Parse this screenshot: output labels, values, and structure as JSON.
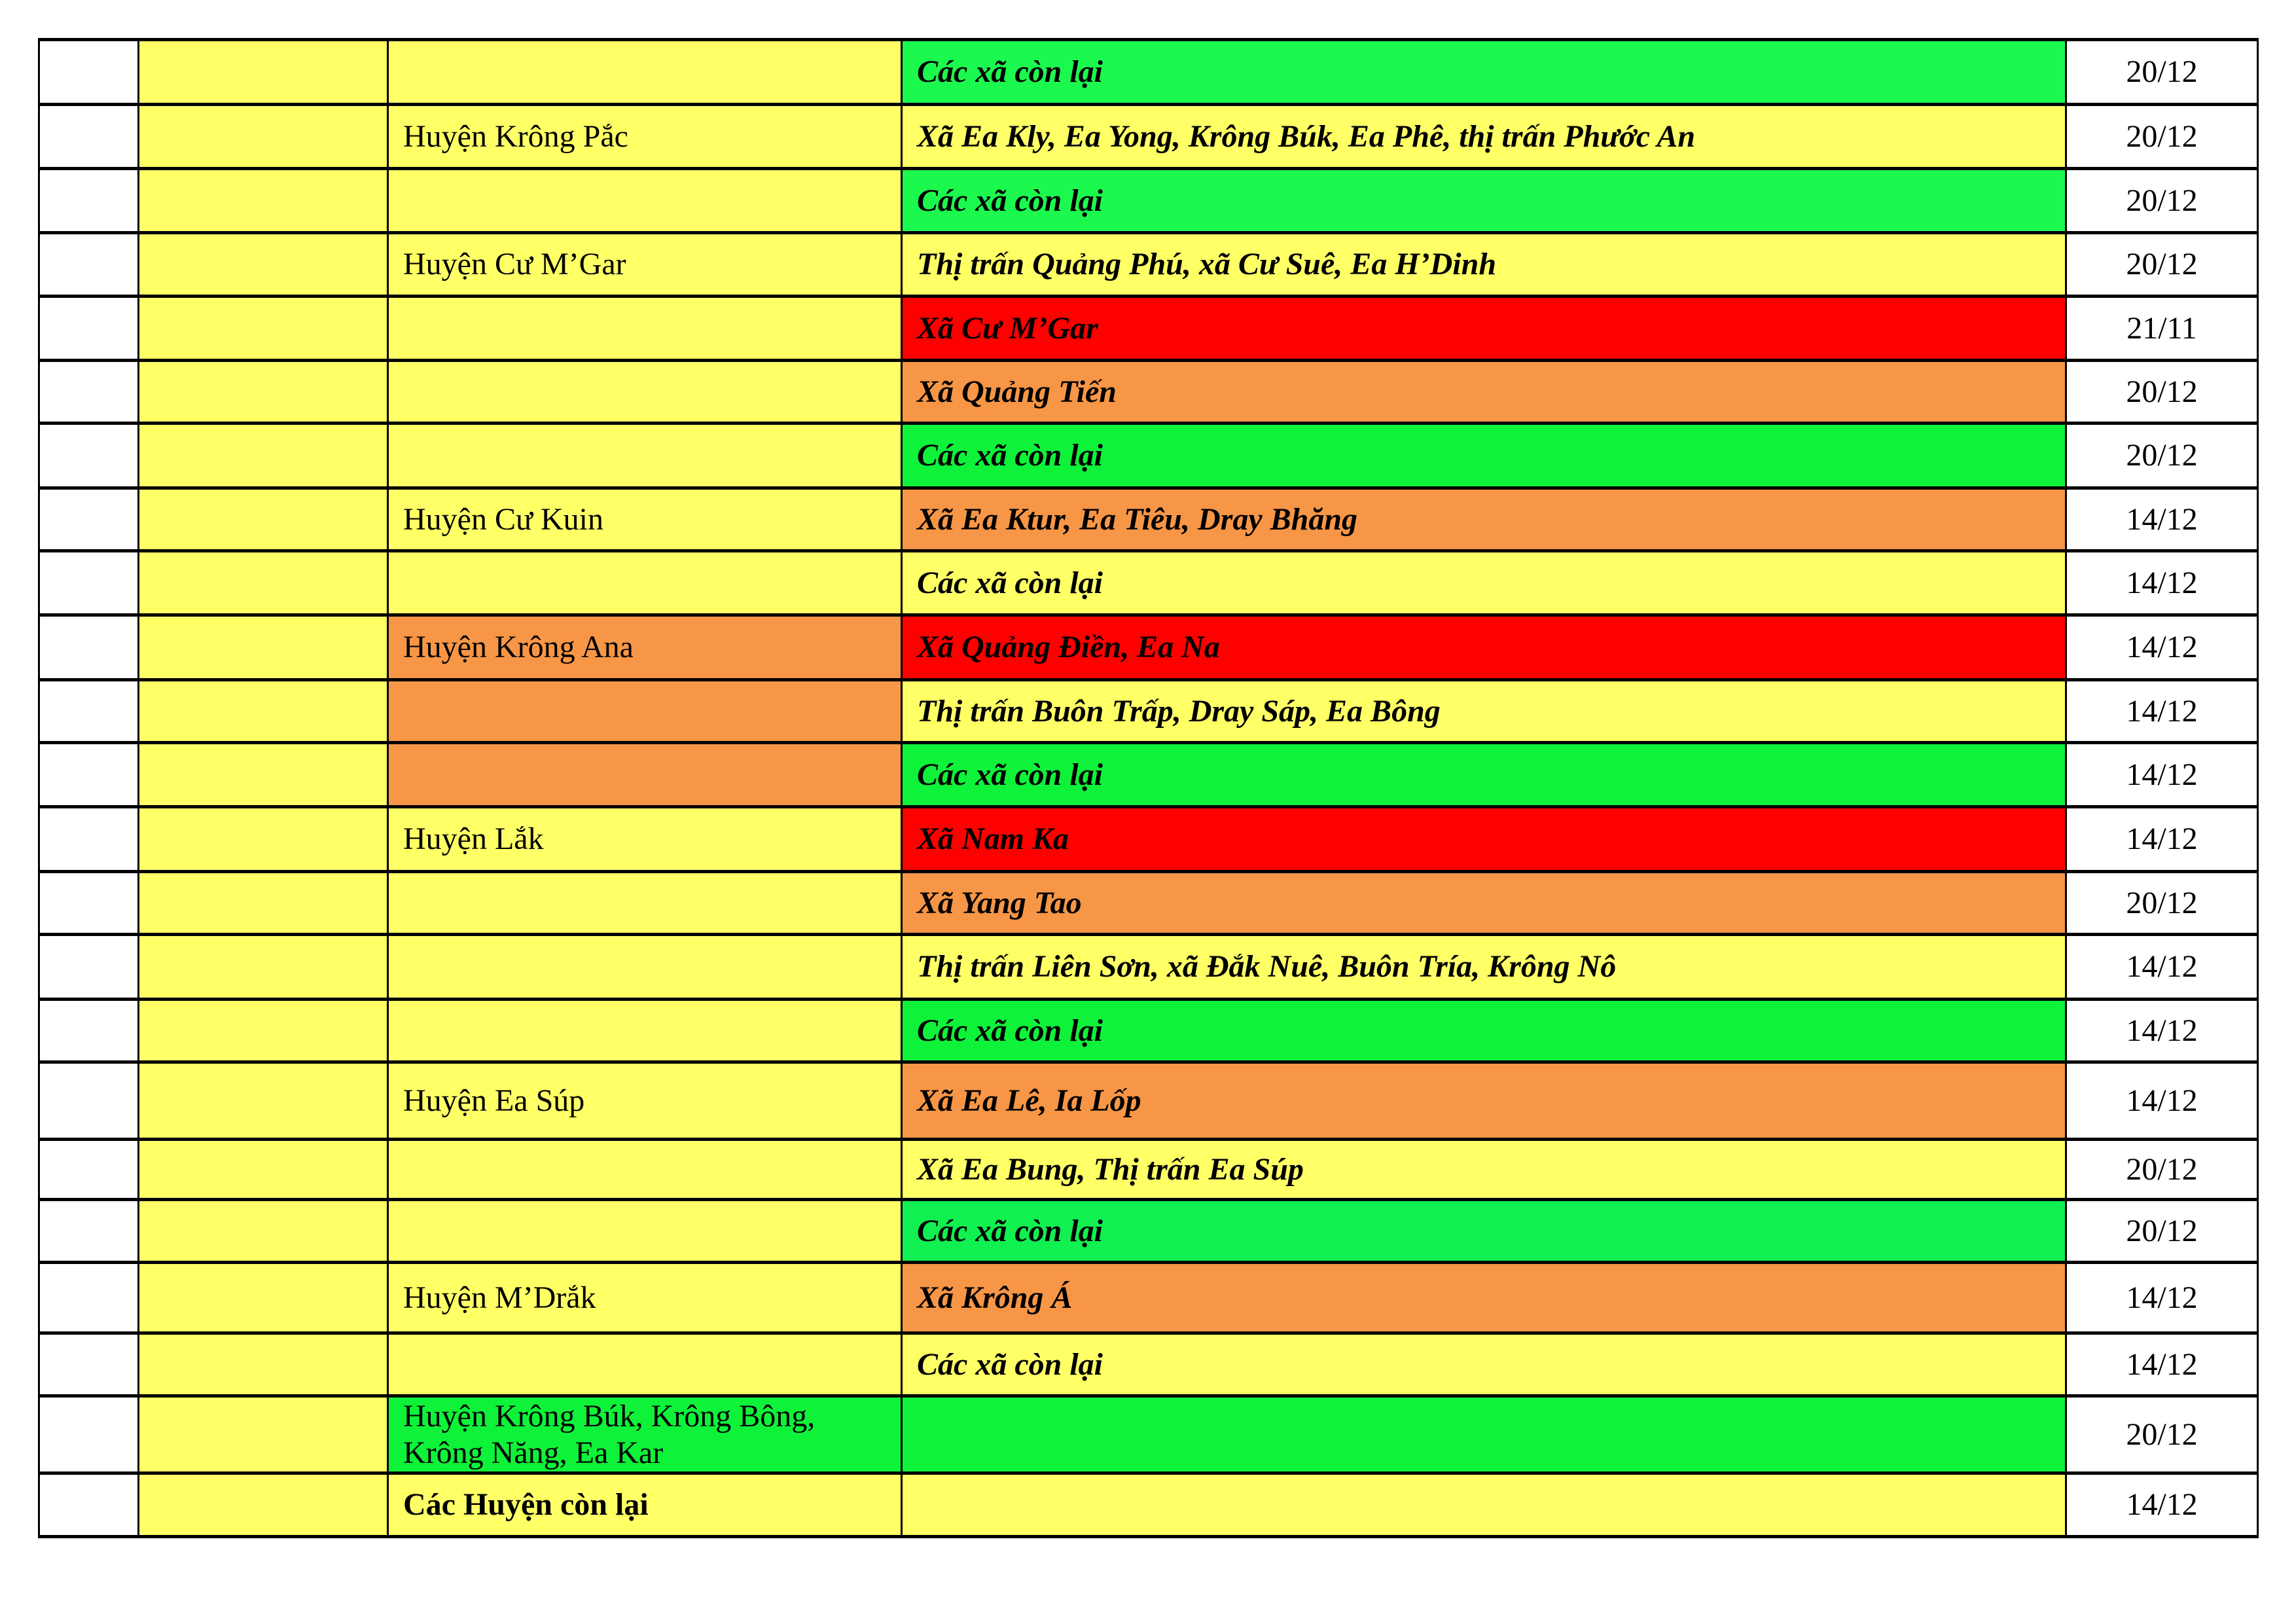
{
  "colors": {
    "yellow": "#FFFF66",
    "green": "#1CF94E",
    "green2": "#0EF23A",
    "green3": "#10F050",
    "orange": "#F79646",
    "red": "#FF0000"
  },
  "rows": [
    {
      "district": "",
      "district_color": "yellow",
      "commune": "Các xã còn lại",
      "commune_color": "green",
      "date": "20/12"
    },
    {
      "district": "Huyện Krông Pắc",
      "district_color": "yellow",
      "commune": "Xã Ea Kly, Ea Yong, Krông Búk, Ea Phê, thị trấn Phước An",
      "commune_color": "yellow",
      "date": "20/12"
    },
    {
      "district": "",
      "district_color": "yellow",
      "commune": "Các xã còn lại",
      "commune_color": "green",
      "date": "20/12"
    },
    {
      "district": "Huyện Cư M’Gar",
      "district_color": "yellow",
      "commune": "Thị trấn Quảng Phú, xã Cư Suê, Ea H’Dinh",
      "commune_color": "yellow",
      "date": "20/12"
    },
    {
      "district": "",
      "district_color": "yellow",
      "commune": "Xã Cư M’Gar",
      "commune_color": "red",
      "date": "21/11"
    },
    {
      "district": "",
      "district_color": "yellow",
      "commune": "Xã Quảng Tiến",
      "commune_color": "orange",
      "date": "20/12"
    },
    {
      "district": "",
      "district_color": "yellow",
      "commune": "Các xã còn lại",
      "commune_color": "green2",
      "date": "20/12"
    },
    {
      "district": "Huyện Cư Kuin",
      "district_color": "yellow",
      "commune": "Xã Ea Ktur, Ea Tiêu, Dray Bhăng",
      "commune_color": "orange",
      "date": "14/12"
    },
    {
      "district": "",
      "district_color": "yellow",
      "commune": "Các xã còn lại",
      "commune_color": "yellow",
      "date": "14/12"
    },
    {
      "district": "Huyện Krông Ana",
      "district_color": "orange",
      "commune": "Xã Quảng Điền, Ea Na",
      "commune_color": "red",
      "date": "14/12"
    },
    {
      "district": "",
      "district_color": "orange",
      "commune": "Thị trấn Buôn Trấp, Dray Sáp, Ea Bông",
      "commune_color": "yellow",
      "date": "14/12"
    },
    {
      "district": "",
      "district_color": "orange",
      "commune": "Các xã còn lại",
      "commune_color": "green2",
      "date": "14/12"
    },
    {
      "district": "Huyện Lắk",
      "district_color": "yellow",
      "commune": "Xã Nam Ka",
      "commune_color": "red",
      "date": "14/12"
    },
    {
      "district": "",
      "district_color": "yellow",
      "commune": "Xã Yang Tao",
      "commune_color": "orange",
      "date": "20/12"
    },
    {
      "district": "",
      "district_color": "yellow",
      "commune": "Thị trấn Liên Sơn, xã Đắk Nuê, Buôn Tría, Krông Nô",
      "commune_color": "yellow",
      "date": "14/12"
    },
    {
      "district": "",
      "district_color": "yellow",
      "commune": "Các xã còn lại",
      "commune_color": "green2",
      "date": "14/12"
    },
    {
      "district": "Huyện Ea Súp",
      "district_color": "yellow",
      "commune": "Xã Ea Lê, Ia Lốp",
      "commune_color": "orange",
      "date": "14/12"
    },
    {
      "district": "",
      "district_color": "yellow",
      "commune": "Xã Ea Bung, Thị trấn Ea Súp",
      "commune_color": "yellow",
      "date": "20/12"
    },
    {
      "district": "",
      "district_color": "yellow",
      "commune": "Các xã còn lại",
      "commune_color": "green3",
      "date": "20/12"
    },
    {
      "district": "Huyện M’Drắk",
      "district_color": "yellow",
      "commune": "Xã Krông Á",
      "commune_color": "orange",
      "date": "14/12"
    },
    {
      "district": "",
      "district_color": "yellow",
      "commune": "Các xã còn lại",
      "commune_color": "yellow",
      "date": "14/12"
    },
    {
      "district": "Huyện Krông Búk, Krông Bông, Krông Năng, Ea Kar",
      "district_color": "green2",
      "commune": "",
      "commune_color": "green2",
      "date": "20/12"
    },
    {
      "district": "Các Huyện còn lại",
      "district_color": "yellow",
      "district_bold": true,
      "commune": "",
      "commune_color": "yellow",
      "date": "14/12"
    }
  ]
}
